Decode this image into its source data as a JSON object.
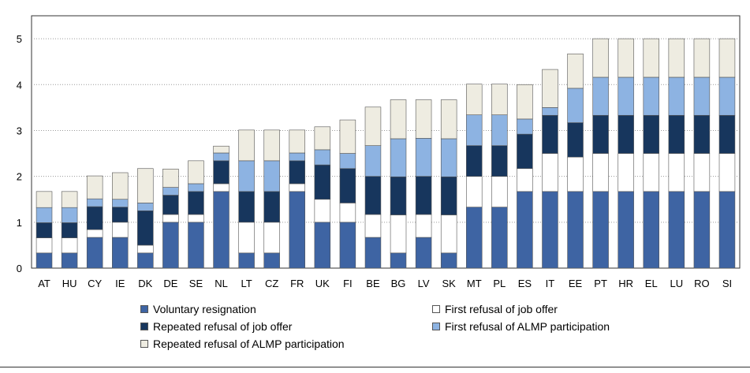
{
  "chart_data": {
    "type": "bar",
    "stacked": true,
    "title": "",
    "xlabel": "",
    "ylabel": "",
    "ylim": [
      0,
      5.5
    ],
    "yticks": [
      0,
      1,
      2,
      3,
      4,
      5
    ],
    "categories": [
      "AT",
      "HU",
      "CY",
      "IE",
      "DK",
      "DE",
      "SE",
      "NL",
      "LT",
      "CZ",
      "FR",
      "UK",
      "FI",
      "BE",
      "BG",
      "LV",
      "SK",
      "MT",
      "PL",
      "ES",
      "IT",
      "EE",
      "PT",
      "HR",
      "EL",
      "LU",
      "RO",
      "SI"
    ],
    "series": [
      {
        "name": "Voluntary resignation",
        "color": "#3e64a3",
        "values": [
          0.33,
          0.33,
          0.67,
          0.67,
          0.33,
          1.0,
          1.0,
          1.67,
          0.33,
          0.33,
          1.67,
          1.0,
          1.0,
          0.67,
          0.33,
          0.67,
          0.33,
          1.33,
          1.33,
          1.67,
          1.67,
          1.67,
          1.67,
          1.67,
          1.67,
          1.67,
          1.67,
          1.67
        ]
      },
      {
        "name": "First refusal of job offer",
        "color": "#ffffff",
        "values": [
          0.33,
          0.33,
          0.17,
          0.33,
          0.17,
          0.17,
          0.17,
          0.17,
          0.67,
          0.67,
          0.17,
          0.5,
          0.42,
          0.5,
          0.83,
          0.5,
          0.83,
          0.67,
          0.67,
          0.5,
          0.83,
          0.75,
          0.83,
          0.83,
          0.83,
          0.83,
          0.83,
          0.83
        ]
      },
      {
        "name": "Repeated refusal of job offer",
        "color": "#17365d",
        "values": [
          0.33,
          0.33,
          0.5,
          0.33,
          0.75,
          0.42,
          0.5,
          0.5,
          0.67,
          0.67,
          0.5,
          0.75,
          0.75,
          0.83,
          0.83,
          0.83,
          0.83,
          0.67,
          0.67,
          0.75,
          0.83,
          0.75,
          0.83,
          0.83,
          0.83,
          0.83,
          0.83,
          0.83
        ]
      },
      {
        "name": "First refusal of ALMP participation",
        "color": "#8db3e2",
        "values": [
          0.33,
          0.33,
          0.17,
          0.17,
          0.17,
          0.17,
          0.17,
          0.17,
          0.67,
          0.67,
          0.17,
          0.33,
          0.33,
          0.67,
          0.83,
          0.83,
          0.83,
          0.67,
          0.67,
          0.33,
          0.17,
          0.75,
          0.83,
          0.83,
          0.83,
          0.83,
          0.83,
          0.83
        ]
      },
      {
        "name": "Repeated refusal of ALMP participation",
        "color": "#eeece1",
        "values": [
          0.35,
          0.35,
          0.5,
          0.58,
          0.75,
          0.4,
          0.5,
          0.15,
          0.67,
          0.67,
          0.5,
          0.5,
          0.73,
          0.84,
          0.85,
          0.84,
          0.85,
          0.67,
          0.67,
          0.75,
          0.83,
          0.75,
          0.84,
          0.84,
          0.84,
          0.84,
          0.84,
          0.84
        ]
      }
    ],
    "legend": {
      "position": "bottom",
      "columns": 2
    }
  }
}
